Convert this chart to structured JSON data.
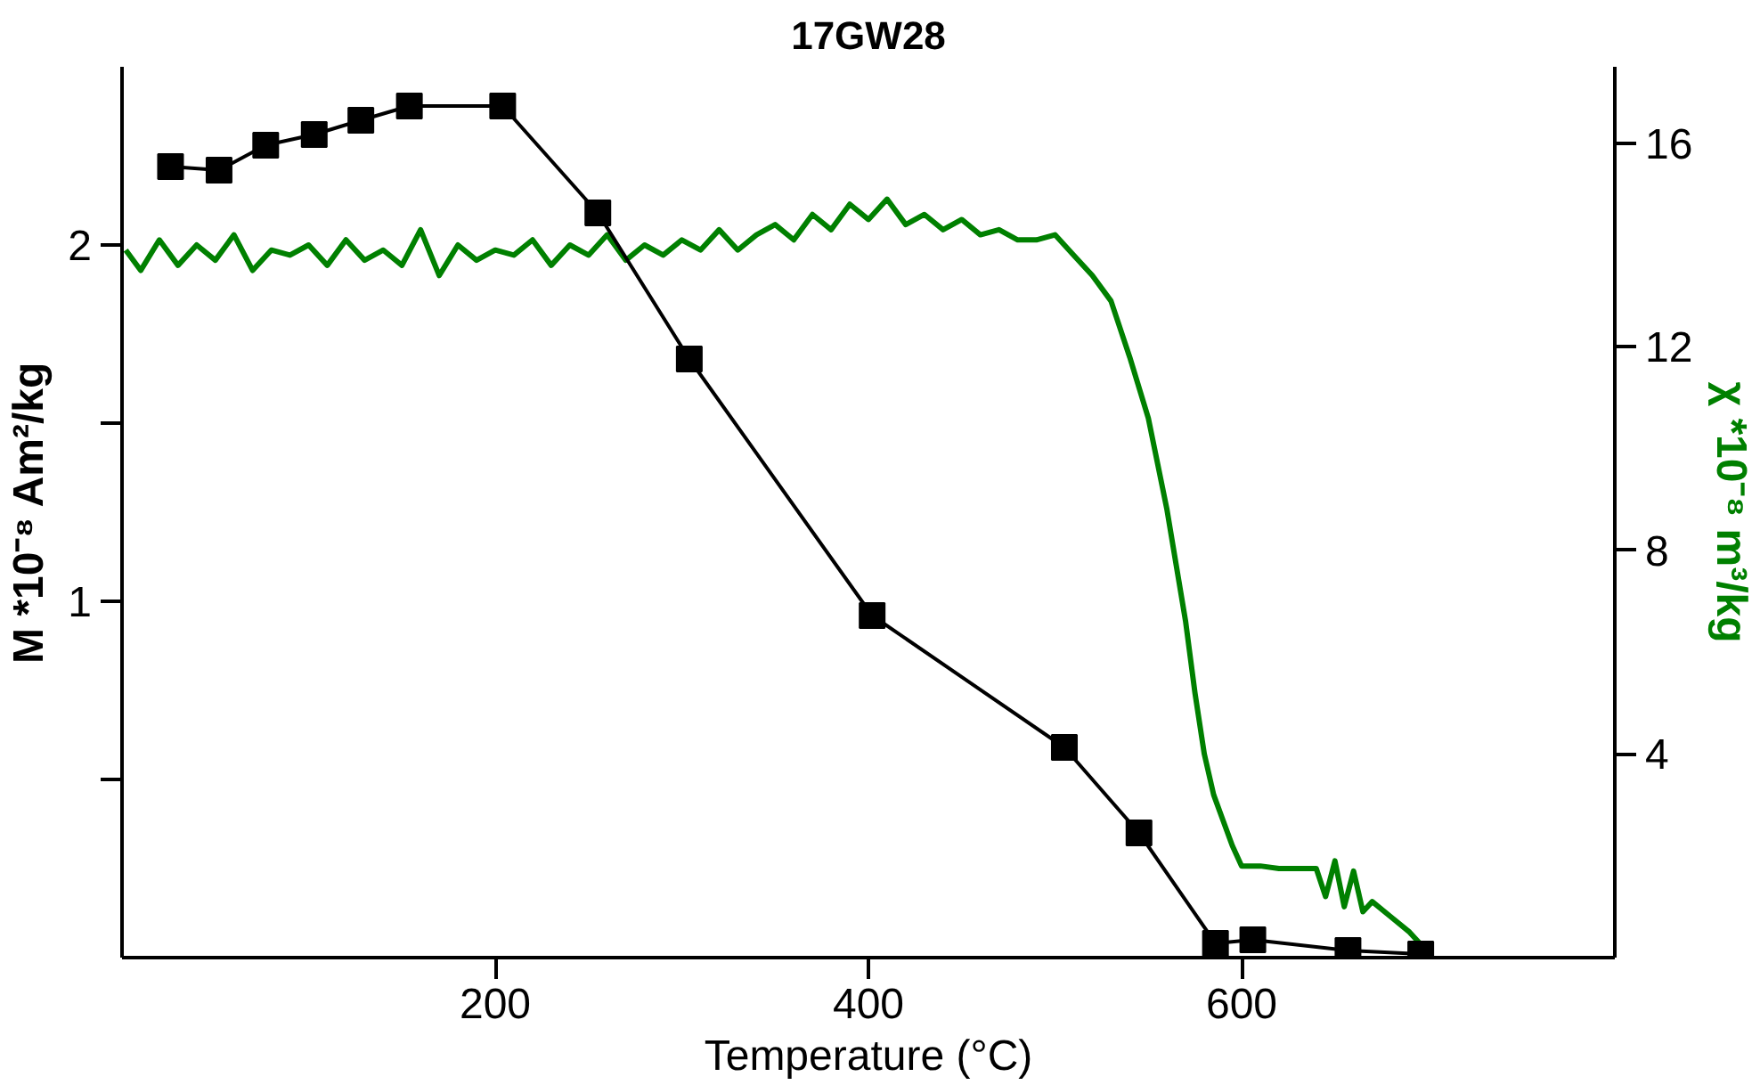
{
  "chart_data": {
    "type": "line",
    "title": "17GW28",
    "xlabel": "Temperature (°C)",
    "ylabel": "M *10⁻⁸ Am²/kg",
    "y2label": "χ *10⁻⁸ m³/kg",
    "xlim": [
      0,
      800
    ],
    "xticks": [
      200,
      400,
      600
    ],
    "ylim": [
      0,
      2.5
    ],
    "yticks": [
      {
        "value": 0.5,
        "label": null
      },
      1,
      {
        "value": 1.5,
        "label": null
      },
      2
    ],
    "y2lim": [
      0,
      17.5
    ],
    "y2ticks": [
      4,
      8,
      12,
      16
    ],
    "grid": false,
    "series": [
      {
        "color": "#000000",
        "marker": "square",
        "x": [
          26,
          52,
          77,
          103,
          128,
          154,
          204,
          255,
          304,
          402,
          505,
          545,
          586,
          606,
          657,
          696
        ],
        "values": [
          2.22,
          2.21,
          2.28,
          2.31,
          2.35,
          2.39,
          2.39,
          2.09,
          1.68,
          0.96,
          0.59,
          0.35,
          0.04,
          0.05,
          0.02,
          0.01
        ]
      },
      {
        "color": "#008000",
        "marker": "none",
        "axis": "y2",
        "x": [
          2,
          10,
          20,
          30,
          40,
          50,
          60,
          70,
          80,
          90,
          100,
          110,
          120,
          130,
          140,
          150,
          160,
          170,
          180,
          190,
          200,
          210,
          220,
          230,
          240,
          250,
          260,
          270,
          280,
          290,
          300,
          310,
          320,
          330,
          340,
          350,
          360,
          370,
          380,
          390,
          400,
          410,
          420,
          430,
          440,
          450,
          460,
          470,
          480,
          490,
          500,
          510,
          520,
          530,
          540,
          550,
          560,
          570,
          575,
          580,
          585,
          590,
          595,
          600,
          610,
          620,
          630,
          640,
          645,
          650,
          655,
          660,
          665,
          670,
          680,
          690,
          700
        ],
        "values": [
          13.9,
          13.5,
          14.1,
          13.6,
          14.0,
          13.7,
          14.2,
          13.5,
          13.9,
          13.8,
          14.0,
          13.6,
          14.1,
          13.7,
          13.9,
          13.6,
          14.3,
          13.4,
          14.0,
          13.7,
          13.9,
          13.8,
          14.1,
          13.6,
          14.0,
          13.8,
          14.2,
          13.7,
          14.0,
          13.8,
          14.1,
          13.9,
          14.3,
          13.9,
          14.2,
          14.4,
          14.1,
          14.6,
          14.3,
          14.8,
          14.5,
          14.9,
          14.4,
          14.6,
          14.3,
          14.5,
          14.2,
          14.3,
          14.1,
          14.1,
          14.2,
          13.8,
          13.4,
          12.9,
          11.8,
          10.6,
          8.8,
          6.6,
          5.2,
          4.0,
          3.2,
          2.7,
          2.2,
          1.8,
          1.8,
          1.75,
          1.75,
          1.75,
          1.2,
          1.9,
          1.0,
          1.7,
          0.9,
          1.1,
          0.8,
          0.5,
          0.1
        ]
      }
    ]
  }
}
